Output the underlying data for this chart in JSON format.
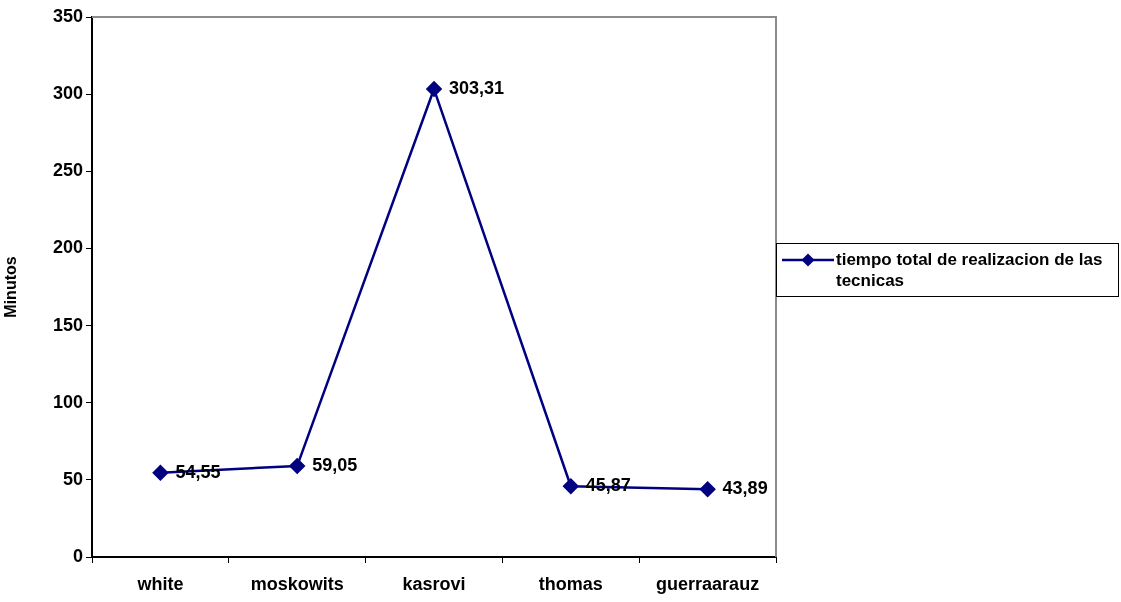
{
  "chart_data": {
    "type": "line",
    "ylabel": "Minutos",
    "categories": [
      "white",
      "moskowits",
      "kasrovi",
      "thomas",
      "guerraarauz"
    ],
    "series": [
      {
        "name": "tiempo total de realizacion de las tecnicas",
        "color": "#000080",
        "values": [
          54.55,
          59.05,
          303.31,
          45.87,
          43.89
        ],
        "value_labels": [
          "54,55",
          "59,05",
          "303,31",
          "45,87",
          "43,89"
        ]
      }
    ],
    "ylim": [
      0,
      350
    ],
    "yticks": [
      0,
      50,
      100,
      150,
      200,
      250,
      300,
      350
    ],
    "grid": false,
    "legend": "right",
    "marker": "diamond",
    "line_style": "solid"
  }
}
